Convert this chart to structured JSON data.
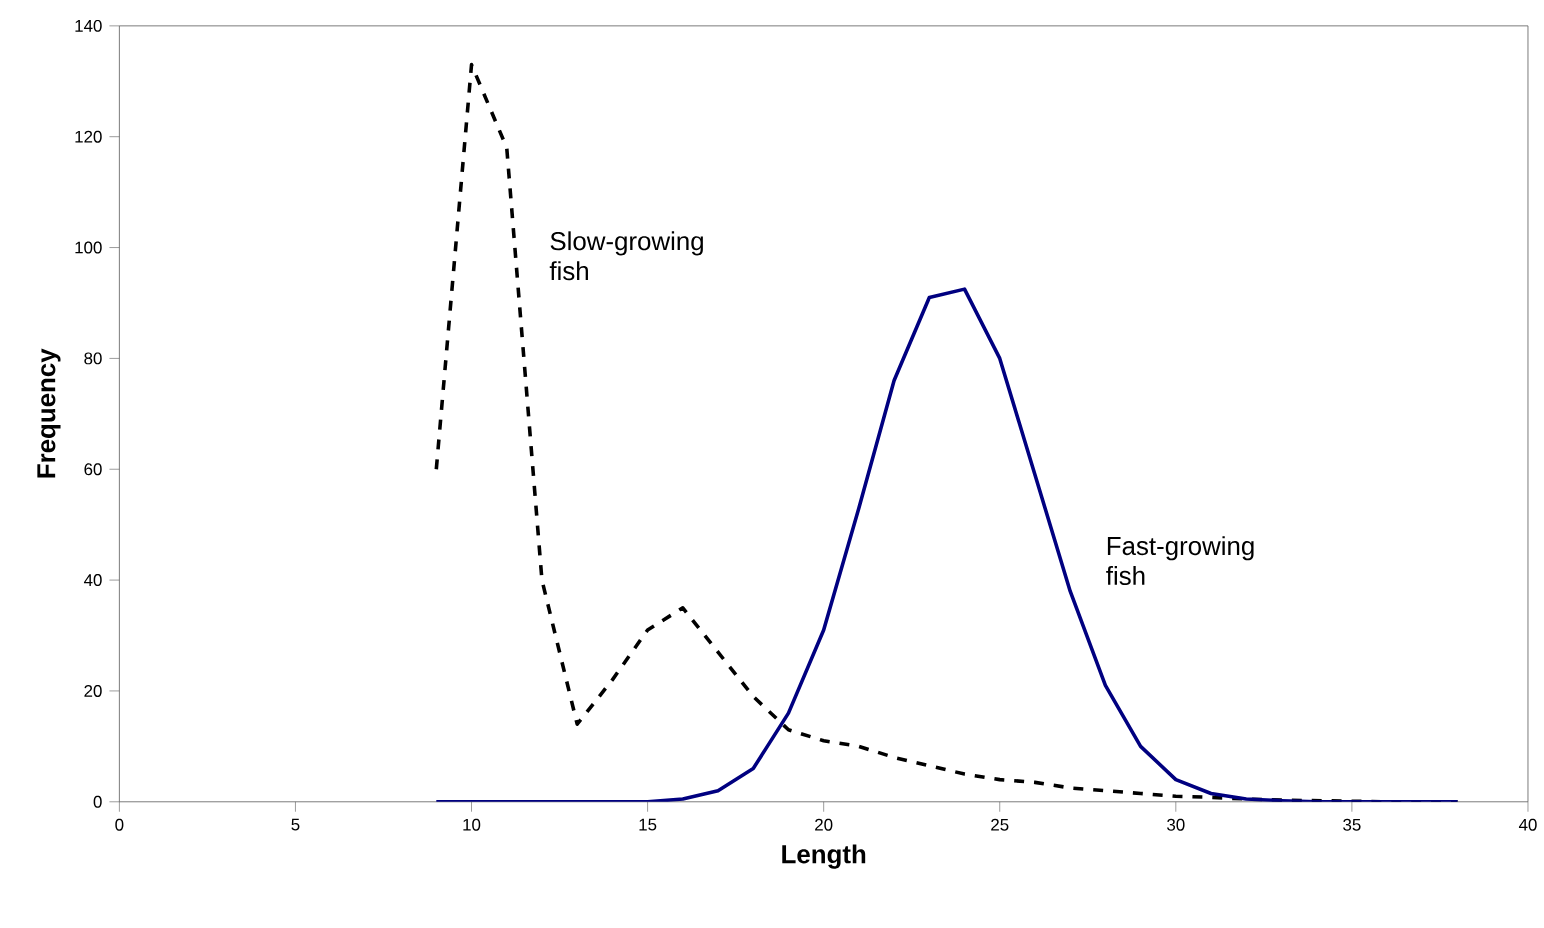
{
  "chart_data": {
    "type": "line",
    "xlabel": "Length",
    "ylabel": "Frequency",
    "x": [
      9,
      10,
      11,
      12,
      13,
      14,
      15,
      16,
      17,
      18,
      19,
      20,
      21,
      22,
      23,
      24,
      25,
      26,
      27,
      28,
      29,
      30,
      31,
      32,
      33,
      34,
      35,
      36,
      37,
      38
    ],
    "series": [
      {
        "name": "Slow-growing fish",
        "color": "#000000",
        "line_style": "dashed",
        "values": [
          60,
          133,
          118,
          40,
          14,
          22,
          31,
          35,
          27,
          19,
          13,
          11,
          10,
          8,
          6.5,
          5,
          4,
          3.5,
          2.5,
          2,
          1.5,
          1,
          0.8,
          0.5,
          0.3,
          0.2,
          0.1,
          0,
          0,
          0
        ]
      },
      {
        "name": "Fast-growing fish",
        "color": "#000080",
        "line_style": "solid",
        "values": [
          0,
          0,
          0,
          0,
          0,
          0,
          0,
          0.5,
          2,
          6,
          16,
          31,
          53,
          76,
          91,
          92.5,
          80,
          59,
          38,
          21,
          10,
          4,
          1.5,
          0.5,
          0.2,
          0,
          0,
          0,
          0,
          0
        ]
      }
    ],
    "xlim": [
      0,
      40
    ],
    "xticks": [
      0,
      5,
      10,
      15,
      20,
      25,
      30,
      35,
      40
    ],
    "ylim": [
      0,
      140
    ],
    "yticks": [
      0,
      20,
      40,
      60,
      80,
      100,
      120,
      140
    ],
    "grid": false,
    "legend": false,
    "marker": "none"
  }
}
